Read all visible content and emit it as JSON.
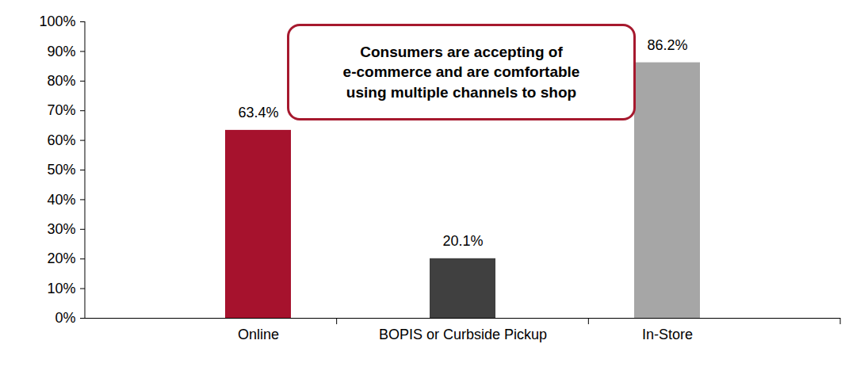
{
  "chart_data": {
    "type": "bar",
    "categories": [
      "Online",
      "BOPIS or Curbside Pickup",
      "In-Store"
    ],
    "values": [
      63.4,
      20.1,
      86.2
    ],
    "value_labels": [
      "63.4%",
      "20.1%",
      "86.2%"
    ],
    "colors": [
      "#a6122d",
      "#404040",
      "#a6a6a6"
    ],
    "data_labels": true,
    "grid": false,
    "annotation": [
      "Consumers are accepting of",
      "e-commerce and are comfortable",
      "using multiple channels to shop"
    ],
    "ylim": [
      0,
      100
    ],
    "yticks": [
      {
        "value": 0,
        "label": "0%"
      },
      {
        "value": 10,
        "label": "10%"
      },
      {
        "value": 20,
        "label": "20%"
      },
      {
        "value": 30,
        "label": "30%"
      },
      {
        "value": 40,
        "label": "40%"
      },
      {
        "value": 50,
        "label": "50%"
      },
      {
        "value": 60,
        "label": "60%"
      },
      {
        "value": 70,
        "label": "70%"
      },
      {
        "value": 80,
        "label": "80%"
      },
      {
        "value": 90,
        "label": "90%"
      },
      {
        "value": 100,
        "label": "100%"
      }
    ]
  }
}
